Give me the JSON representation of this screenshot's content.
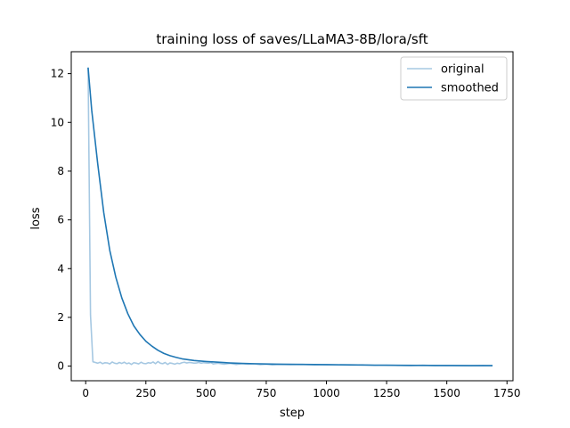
{
  "chart_data": {
    "type": "line",
    "title": "training loss of saves/LLaMA3-8B/lora/sft",
    "xlabel": "step",
    "ylabel": "loss",
    "xlim": [
      -60,
      1775
    ],
    "ylim": [
      -0.6,
      12.9
    ],
    "xticks": [
      0,
      250,
      500,
      750,
      1000,
      1250,
      1500,
      1750
    ],
    "yticks": [
      0,
      2,
      4,
      6,
      8,
      10,
      12
    ],
    "grid": false,
    "legend": {
      "position": "top-right",
      "entries": [
        "original",
        "smoothed"
      ]
    },
    "series": [
      {
        "name": "original",
        "color": "#a6c8e2",
        "x": [
          10,
          20,
          30,
          40,
          50,
          60,
          70,
          80,
          90,
          100,
          110,
          120,
          130,
          140,
          150,
          160,
          170,
          180,
          190,
          200,
          210,
          220,
          230,
          240,
          250,
          260,
          270,
          280,
          290,
          300,
          310,
          320,
          330,
          340,
          350,
          360,
          370,
          380,
          390,
          400,
          410,
          420,
          430,
          440,
          450,
          460,
          470,
          480,
          490,
          500,
          510,
          520,
          530,
          550,
          575,
          600,
          625,
          650,
          675,
          700,
          725,
          750,
          775,
          800,
          850,
          900,
          950,
          1000,
          1050,
          1100,
          1150,
          1200,
          1250,
          1300,
          1350,
          1400,
          1450,
          1500,
          1550,
          1600,
          1650,
          1690
        ],
        "y": [
          12.25,
          2.1,
          0.18,
          0.15,
          0.12,
          0.16,
          0.1,
          0.14,
          0.13,
          0.09,
          0.17,
          0.12,
          0.1,
          0.15,
          0.11,
          0.16,
          0.1,
          0.13,
          0.07,
          0.14,
          0.12,
          0.09,
          0.16,
          0.11,
          0.1,
          0.14,
          0.12,
          0.17,
          0.1,
          0.19,
          0.12,
          0.1,
          0.15,
          0.07,
          0.13,
          0.11,
          0.08,
          0.12,
          0.1,
          0.14,
          0.16,
          0.13,
          0.15,
          0.14,
          0.12,
          0.13,
          0.15,
          0.12,
          0.14,
          0.13,
          0.12,
          0.14,
          0.09,
          0.12,
          0.08,
          0.11,
          0.07,
          0.1,
          0.08,
          0.09,
          0.06,
          0.08,
          0.05,
          0.07,
          0.06,
          0.07,
          0.05,
          0.06,
          0.05,
          0.04,
          0.05,
          0.03,
          0.04,
          0.03,
          0.02,
          0.04,
          0.02,
          0.03,
          0.02,
          0.02,
          0.03,
          0.02
        ]
      },
      {
        "name": "smoothed",
        "color": "#1f77b4",
        "x": [
          10,
          25,
          50,
          75,
          100,
          125,
          150,
          175,
          200,
          225,
          250,
          275,
          300,
          325,
          350,
          375,
          400,
          450,
          500,
          550,
          600,
          650,
          700,
          750,
          800,
          900,
          1000,
          1100,
          1200,
          1300,
          1400,
          1500,
          1600,
          1690
        ],
        "y": [
          12.25,
          10.5,
          8.3,
          6.3,
          4.75,
          3.65,
          2.8,
          2.15,
          1.65,
          1.3,
          1.02,
          0.82,
          0.65,
          0.52,
          0.43,
          0.36,
          0.3,
          0.23,
          0.19,
          0.16,
          0.13,
          0.11,
          0.1,
          0.09,
          0.08,
          0.07,
          0.06,
          0.05,
          0.04,
          0.035,
          0.03,
          0.025,
          0.02,
          0.02
        ]
      }
    ]
  }
}
